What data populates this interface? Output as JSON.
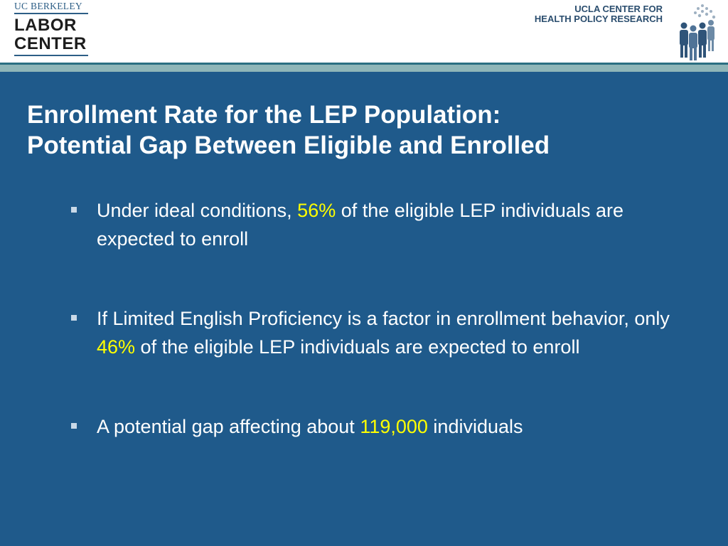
{
  "header": {
    "left_logo": {
      "line1": "UC BERKELEY",
      "line2": "LABOR",
      "line3": "CENTER"
    },
    "right_logo": {
      "line1": "UCLA CENTER FOR",
      "line2": "HEALTH POLICY RESEARCH"
    }
  },
  "title": {
    "line1": "Enrollment Rate for the LEP Population:",
    "line2": "Potential Gap Between Eligible and Enrolled"
  },
  "bullets": [
    {
      "before": "Under ideal conditions, ",
      "highlight": "56%",
      "after": " of the eligible LEP individuals are expected to enroll"
    },
    {
      "before": "If Limited English Proficiency is a factor in enrollment behavior, only ",
      "highlight": "46%",
      "after": " of the eligible LEP individuals are expected to enroll"
    },
    {
      "before": "A potential gap affecting about ",
      "highlight": "119,000",
      "after": " individuals"
    }
  ],
  "colors": {
    "background": "#1f5a8b",
    "highlight": "#ffff00",
    "text": "#ffffff"
  }
}
